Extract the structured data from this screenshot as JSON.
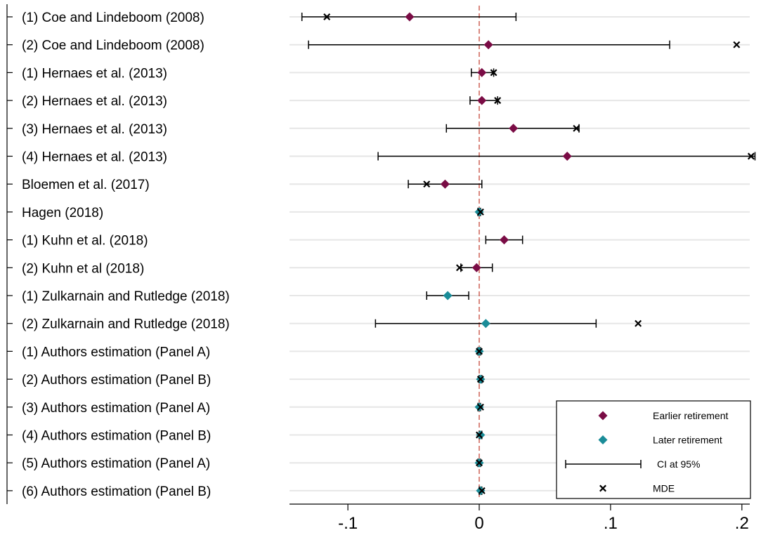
{
  "chart_data": {
    "type": "forest",
    "x_ticks": [
      -0.1,
      0,
      0.1,
      0.2
    ],
    "x_tick_labels": [
      "-.1",
      "0",
      ".1",
      ".2"
    ],
    "xlim": [
      -0.145,
      0.212
    ],
    "reference_line": 0,
    "grid": "horizontal",
    "colors": {
      "earlier": "#7a0c45",
      "later": "#1a8c98",
      "reference": "#c0392b",
      "grid": "#e6e6e6"
    },
    "studies": [
      {
        "label": "(1) Coe and Lindeboom (2008)",
        "estimate": -0.053,
        "ci": [
          -0.135,
          0.028
        ],
        "mde": -0.116,
        "group": "earlier"
      },
      {
        "label": "(2) Coe and Lindeboom (2008)",
        "estimate": 0.007,
        "ci": [
          -0.13,
          0.145
        ],
        "mde": 0.196,
        "group": "earlier"
      },
      {
        "label": "(1) Hernaes et al. (2013)",
        "estimate": 0.002,
        "ci": [
          -0.006,
          0.011
        ],
        "mde": 0.011,
        "group": "earlier"
      },
      {
        "label": "(2) Hernaes et al. (2013)",
        "estimate": 0.002,
        "ci": [
          -0.007,
          0.014
        ],
        "mde": 0.014,
        "group": "earlier"
      },
      {
        "label": "(3) Hernaes et al. (2013)",
        "estimate": 0.026,
        "ci": [
          -0.025,
          0.076
        ],
        "mde": 0.074,
        "group": "earlier"
      },
      {
        "label": "(4) Hernaes et al. (2013)",
        "estimate": 0.067,
        "ci": [
          -0.077,
          0.21
        ],
        "mde": 0.207,
        "group": "earlier"
      },
      {
        "label": "Bloemen et al. (2017)",
        "estimate": -0.026,
        "ci": [
          -0.054,
          0.002
        ],
        "mde": -0.04,
        "group": "earlier"
      },
      {
        "label": "Hagen (2018)",
        "estimate": 0.0,
        "ci": [
          -0.001,
          0.001
        ],
        "mde": 0.001,
        "group": "later"
      },
      {
        "label": "(1) Kuhn et al. (2018)",
        "estimate": 0.019,
        "ci": [
          0.005,
          0.033
        ],
        "mde": null,
        "group": "earlier"
      },
      {
        "label": "(2) Kuhn et al (2018)",
        "estimate": -0.002,
        "ci": [
          -0.014,
          0.01
        ],
        "mde": -0.015,
        "group": "earlier"
      },
      {
        "label": "(1) Zulkarnain and Rutledge (2018)",
        "estimate": -0.024,
        "ci": [
          -0.04,
          -0.008
        ],
        "mde": null,
        "group": "later"
      },
      {
        "label": "(2) Zulkarnain and Rutledge (2018)",
        "estimate": 0.005,
        "ci": [
          -0.079,
          0.089
        ],
        "mde": 0.121,
        "group": "later"
      },
      {
        "label": "(1) Authors estimation (Panel A)",
        "estimate": 0.0,
        "ci": [
          -0.001,
          0.001
        ],
        "mde": 0.0,
        "group": "later"
      },
      {
        "label": "(2) Authors estimation (Panel B)",
        "estimate": 0.001,
        "ci": [
          0.0,
          0.002
        ],
        "mde": 0.001,
        "group": "later"
      },
      {
        "label": "(3) Authors estimation (Panel A)",
        "estimate": 0.0,
        "ci": [
          -0.001,
          0.001
        ],
        "mde": 0.001,
        "group": "later"
      },
      {
        "label": "(4) Authors estimation (Panel B)",
        "estimate": 0.001,
        "ci": [
          0.0,
          0.002
        ],
        "mde": 0.0,
        "group": "later"
      },
      {
        "label": "(5) Authors estimation (Panel A)",
        "estimate": 0.0,
        "ci": [
          -0.001,
          0.001
        ],
        "mde": 0.0,
        "group": "later"
      },
      {
        "label": "(6) Authors estimation (Panel B)",
        "estimate": 0.001,
        "ci": [
          0.0,
          0.002
        ],
        "mde": 0.002,
        "group": "later"
      }
    ],
    "legend": {
      "position": "bottom-right",
      "items": [
        {
          "symbol": "diamond-earlier",
          "label": "Earlier retirement"
        },
        {
          "symbol": "diamond-later",
          "label": "Later retirement"
        },
        {
          "symbol": "ci-bar",
          "label": "CI at 95%"
        },
        {
          "symbol": "x-mark",
          "label": "MDE"
        }
      ]
    }
  }
}
